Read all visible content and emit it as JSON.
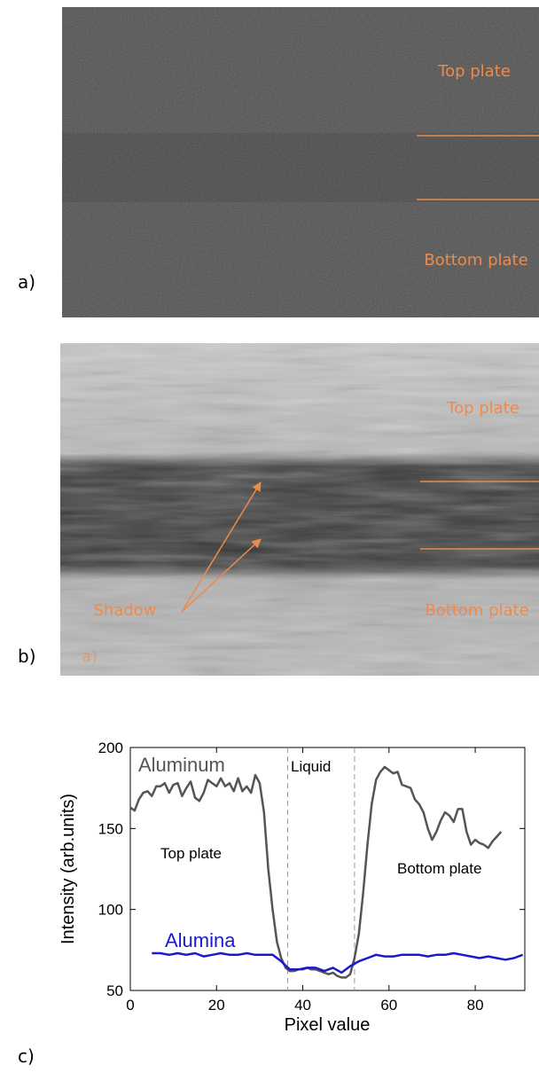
{
  "panels": {
    "a": {
      "label": "a)",
      "top": "Top plate",
      "bottom": "Bottom plate"
    },
    "b": {
      "label": "b)",
      "top": "Top plate",
      "shadow": "Shadow",
      "bottom": "Bottom plate",
      "inset": "a)"
    },
    "c": {
      "label": "c)"
    }
  },
  "chart_data": {
    "type": "line",
    "xlabel": "Pixel value",
    "ylabel": "Intensity (arb.units)",
    "xlim": [
      0,
      91.5
    ],
    "ylim": [
      50,
      200
    ],
    "xticks": [
      0,
      20,
      40,
      60,
      80
    ],
    "yticks": [
      50,
      100,
      150,
      200
    ],
    "vlines": [
      36.5,
      52
    ],
    "annotations": [
      "Liquid",
      "Top plate",
      "Bottom plate"
    ],
    "series": [
      {
        "name": "Aluminum",
        "color": "#555555",
        "x": [
          0,
          1,
          2,
          3,
          4,
          5,
          6,
          7,
          8,
          9,
          10,
          11,
          12,
          13,
          14,
          15,
          16,
          17,
          18,
          19,
          20,
          21,
          22,
          23,
          24,
          25,
          26,
          27,
          28,
          29,
          30,
          31,
          32,
          33,
          34,
          35,
          36,
          37,
          38,
          39,
          40,
          41,
          42,
          43,
          44,
          45,
          46,
          47,
          48,
          49,
          50,
          51,
          52,
          53,
          54,
          55,
          56,
          57,
          58,
          59,
          60,
          61,
          62,
          63,
          64,
          65,
          66,
          67,
          68,
          69,
          70,
          71,
          72,
          73,
          74,
          75,
          76,
          77,
          78,
          79,
          80,
          81,
          82,
          83,
          84,
          85,
          86
        ],
        "values": [
          163,
          161,
          168,
          172,
          173,
          170,
          176,
          176,
          178,
          172,
          177,
          178,
          170,
          175,
          179,
          169,
          167,
          172,
          180,
          178,
          176,
          181,
          176,
          178,
          173,
          181,
          173,
          176,
          172,
          183,
          178,
          160,
          125,
          100,
          80,
          70,
          64,
          62,
          62,
          63,
          63,
          64,
          63,
          63,
          62,
          61,
          60,
          61,
          59,
          58,
          58,
          60,
          70,
          85,
          110,
          140,
          165,
          180,
          185,
          188,
          186,
          184,
          185,
          177,
          176,
          175,
          168,
          165,
          160,
          150,
          143,
          148,
          155,
          160,
          158,
          154,
          162,
          162,
          148,
          140,
          143,
          141,
          140,
          138,
          142,
          145,
          148
        ]
      },
      {
        "name": "Alumina",
        "color": "#1a1acc",
        "x": [
          5,
          7,
          9,
          11,
          13,
          15,
          17,
          19,
          21,
          23,
          25,
          27,
          29,
          31,
          33,
          35,
          37,
          39,
          41,
          43,
          45,
          47,
          49,
          51,
          53,
          55,
          57,
          59,
          61,
          63,
          65,
          67,
          69,
          71,
          73,
          75,
          77,
          79,
          81,
          83,
          85,
          87,
          89,
          91
        ],
        "values": [
          73,
          73,
          72,
          73,
          72,
          73,
          71,
          72,
          73,
          72,
          72,
          73,
          72,
          72,
          72,
          68,
          63,
          63,
          64,
          64,
          62,
          64,
          61,
          65,
          68,
          70,
          72,
          71,
          71,
          72,
          72,
          72,
          71,
          72,
          72,
          73,
          72,
          71,
          70,
          71,
          70,
          69,
          70,
          72
        ]
      }
    ]
  }
}
